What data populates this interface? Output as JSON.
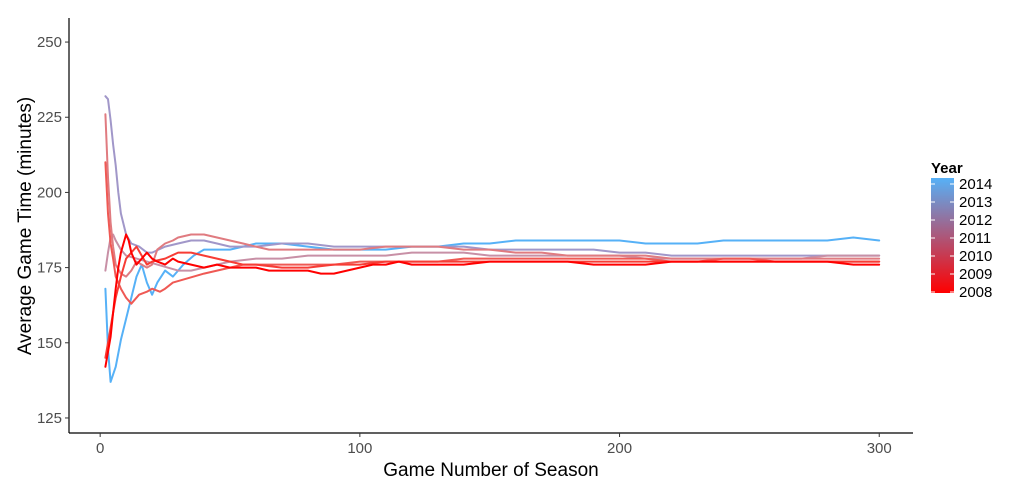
{
  "chart_data": {
    "type": "line",
    "title": "",
    "xlabel": "Game Number of Season",
    "ylabel": "Average Game Time (minutes)",
    "xlim": [
      -12,
      313
    ],
    "ylim": [
      120,
      258
    ],
    "xticks": [
      0,
      100,
      200,
      300
    ],
    "yticks": [
      125,
      150,
      175,
      200,
      225,
      250
    ],
    "grid": false,
    "legend": {
      "title": "Year",
      "position": "right",
      "type": "colorbar",
      "labels": [
        "2014",
        "2013",
        "2012",
        "2011",
        "2010",
        "2009",
        "2008"
      ],
      "low_color": "#ff0000",
      "high_color": "#56b1f7"
    },
    "series": [
      {
        "name": "2014",
        "color": "#56b1f7",
        "points": [
          [
            2,
            168
          ],
          [
            3,
            148
          ],
          [
            4,
            137
          ],
          [
            6,
            142
          ],
          [
            8,
            151
          ],
          [
            10,
            158
          ],
          [
            12,
            165
          ],
          [
            14,
            172
          ],
          [
            16,
            176
          ],
          [
            18,
            170
          ],
          [
            20,
            166
          ],
          [
            22,
            170
          ],
          [
            25,
            174
          ],
          [
            28,
            172
          ],
          [
            32,
            176
          ],
          [
            36,
            179
          ],
          [
            40,
            181
          ],
          [
            45,
            181
          ],
          [
            50,
            181
          ],
          [
            55,
            182
          ],
          [
            60,
            183
          ],
          [
            70,
            183
          ],
          [
            80,
            182
          ],
          [
            90,
            181
          ],
          [
            100,
            181
          ],
          [
            110,
            181
          ],
          [
            120,
            182
          ],
          [
            130,
            182
          ],
          [
            140,
            183
          ],
          [
            150,
            183
          ],
          [
            160,
            184
          ],
          [
            170,
            184
          ],
          [
            180,
            184
          ],
          [
            190,
            184
          ],
          [
            200,
            184
          ],
          [
            210,
            183
          ],
          [
            220,
            183
          ],
          [
            230,
            183
          ],
          [
            240,
            184
          ],
          [
            250,
            184
          ],
          [
            260,
            184
          ],
          [
            270,
            184
          ],
          [
            280,
            184
          ],
          [
            290,
            185
          ],
          [
            300,
            184
          ]
        ]
      },
      {
        "name": "2013",
        "color": "#a197c9",
        "points": [
          [
            2,
            232
          ],
          [
            3,
            231
          ],
          [
            4,
            224
          ],
          [
            5,
            216
          ],
          [
            6,
            209
          ],
          [
            7,
            200
          ],
          [
            8,
            193
          ],
          [
            10,
            186
          ],
          [
            12,
            183
          ],
          [
            15,
            182
          ],
          [
            18,
            180
          ],
          [
            20,
            180
          ],
          [
            25,
            182
          ],
          [
            30,
            183
          ],
          [
            35,
            184
          ],
          [
            40,
            184
          ],
          [
            45,
            183
          ],
          [
            50,
            182
          ],
          [
            60,
            182
          ],
          [
            70,
            183
          ],
          [
            80,
            183
          ],
          [
            90,
            182
          ],
          [
            100,
            182
          ],
          [
            110,
            182
          ],
          [
            120,
            182
          ],
          [
            130,
            182
          ],
          [
            140,
            182
          ],
          [
            150,
            181
          ],
          [
            160,
            181
          ],
          [
            170,
            181
          ],
          [
            180,
            181
          ],
          [
            190,
            181
          ],
          [
            200,
            180
          ],
          [
            210,
            180
          ],
          [
            220,
            179
          ],
          [
            230,
            179
          ],
          [
            240,
            179
          ],
          [
            250,
            179
          ],
          [
            260,
            179
          ],
          [
            270,
            179
          ],
          [
            280,
            179
          ],
          [
            290,
            179
          ],
          [
            300,
            179
          ]
        ]
      },
      {
        "name": "2012",
        "color": "#c890a6",
        "points": [
          [
            2,
            174
          ],
          [
            3,
            180
          ],
          [
            4,
            185
          ],
          [
            5,
            186
          ],
          [
            6,
            184
          ],
          [
            8,
            181
          ],
          [
            10,
            179
          ],
          [
            14,
            178
          ],
          [
            18,
            177
          ],
          [
            22,
            176
          ],
          [
            26,
            175
          ],
          [
            30,
            174
          ],
          [
            35,
            174
          ],
          [
            40,
            175
          ],
          [
            45,
            176
          ],
          [
            50,
            177
          ],
          [
            60,
            178
          ],
          [
            70,
            178
          ],
          [
            80,
            179
          ],
          [
            90,
            179
          ],
          [
            100,
            179
          ],
          [
            110,
            179
          ],
          [
            120,
            180
          ],
          [
            130,
            180
          ],
          [
            140,
            180
          ],
          [
            150,
            179
          ],
          [
            160,
            179
          ],
          [
            170,
            179
          ],
          [
            180,
            179
          ],
          [
            190,
            179
          ],
          [
            200,
            179
          ],
          [
            210,
            178
          ],
          [
            220,
            178
          ],
          [
            230,
            178
          ],
          [
            240,
            178
          ],
          [
            250,
            178
          ],
          [
            260,
            178
          ],
          [
            270,
            178
          ],
          [
            280,
            179
          ],
          [
            290,
            179
          ],
          [
            300,
            179
          ]
        ]
      },
      {
        "name": "2011",
        "color": "#e07b80",
        "points": [
          [
            2,
            226
          ],
          [
            3,
            205
          ],
          [
            4,
            190
          ],
          [
            5,
            182
          ],
          [
            6,
            176
          ],
          [
            8,
            173
          ],
          [
            10,
            172
          ],
          [
            12,
            174
          ],
          [
            14,
            177
          ],
          [
            16,
            176
          ],
          [
            18,
            175
          ],
          [
            20,
            176
          ],
          [
            22,
            181
          ],
          [
            25,
            183
          ],
          [
            28,
            184
          ],
          [
            30,
            185
          ],
          [
            35,
            186
          ],
          [
            40,
            186
          ],
          [
            45,
            185
          ],
          [
            50,
            184
          ],
          [
            55,
            183
          ],
          [
            60,
            182
          ],
          [
            65,
            181
          ],
          [
            70,
            181
          ],
          [
            75,
            181
          ],
          [
            80,
            181
          ],
          [
            90,
            181
          ],
          [
            100,
            181
          ],
          [
            110,
            182
          ],
          [
            120,
            182
          ],
          [
            130,
            182
          ],
          [
            140,
            181
          ],
          [
            150,
            181
          ],
          [
            160,
            180
          ],
          [
            170,
            180
          ],
          [
            180,
            179
          ],
          [
            190,
            179
          ],
          [
            200,
            179
          ],
          [
            210,
            179
          ],
          [
            220,
            178
          ],
          [
            230,
            178
          ],
          [
            240,
            178
          ],
          [
            250,
            178
          ],
          [
            260,
            178
          ],
          [
            270,
            178
          ],
          [
            280,
            178
          ],
          [
            290,
            178
          ],
          [
            300,
            178
          ]
        ]
      },
      {
        "name": "2010",
        "color": "#ef5954",
        "points": [
          [
            2,
            210
          ],
          [
            3,
            193
          ],
          [
            4,
            183
          ],
          [
            5,
            178
          ],
          [
            6,
            172
          ],
          [
            8,
            168
          ],
          [
            10,
            165
          ],
          [
            12,
            163
          ],
          [
            15,
            166
          ],
          [
            18,
            167
          ],
          [
            20,
            168
          ],
          [
            23,
            167
          ],
          [
            25,
            168
          ],
          [
            28,
            170
          ],
          [
            32,
            171
          ],
          [
            36,
            172
          ],
          [
            40,
            173
          ],
          [
            45,
            174
          ],
          [
            50,
            175
          ],
          [
            55,
            176
          ],
          [
            60,
            176
          ],
          [
            70,
            176
          ],
          [
            80,
            176
          ],
          [
            90,
            176
          ],
          [
            100,
            177
          ],
          [
            110,
            177
          ],
          [
            120,
            177
          ],
          [
            130,
            177
          ],
          [
            140,
            178
          ],
          [
            150,
            178
          ],
          [
            160,
            178
          ],
          [
            170,
            178
          ],
          [
            180,
            178
          ],
          [
            190,
            178
          ],
          [
            200,
            178
          ],
          [
            210,
            178
          ],
          [
            220,
            177
          ],
          [
            230,
            177
          ],
          [
            240,
            178
          ],
          [
            250,
            178
          ],
          [
            260,
            177
          ],
          [
            270,
            177
          ],
          [
            280,
            177
          ],
          [
            290,
            177
          ],
          [
            300,
            177
          ]
        ]
      },
      {
        "name": "2009",
        "color": "#f73c35",
        "points": [
          [
            2,
            145
          ],
          [
            3,
            150
          ],
          [
            4,
            155
          ],
          [
            5,
            160
          ],
          [
            6,
            165
          ],
          [
            8,
            172
          ],
          [
            10,
            178
          ],
          [
            12,
            180
          ],
          [
            14,
            182
          ],
          [
            16,
            179
          ],
          [
            18,
            176
          ],
          [
            20,
            177
          ],
          [
            25,
            178
          ],
          [
            30,
            180
          ],
          [
            35,
            180
          ],
          [
            40,
            179
          ],
          [
            45,
            178
          ],
          [
            50,
            177
          ],
          [
            55,
            176
          ],
          [
            60,
            176
          ],
          [
            70,
            175
          ],
          [
            80,
            175
          ],
          [
            90,
            176
          ],
          [
            100,
            176
          ],
          [
            110,
            177
          ],
          [
            120,
            177
          ],
          [
            130,
            177
          ],
          [
            140,
            177
          ],
          [
            150,
            177
          ],
          [
            160,
            177
          ],
          [
            170,
            177
          ],
          [
            180,
            177
          ],
          [
            190,
            177
          ],
          [
            200,
            177
          ],
          [
            210,
            177
          ],
          [
            220,
            177
          ],
          [
            230,
            177
          ],
          [
            240,
            177
          ],
          [
            250,
            177
          ],
          [
            260,
            177
          ],
          [
            270,
            177
          ],
          [
            280,
            177
          ],
          [
            290,
            177
          ],
          [
            300,
            177
          ]
        ]
      },
      {
        "name": "2008",
        "color": "#ff0000",
        "points": [
          [
            2,
            142
          ],
          [
            3,
            147
          ],
          [
            4,
            152
          ],
          [
            5,
            160
          ],
          [
            6,
            168
          ],
          [
            7,
            175
          ],
          [
            8,
            180
          ],
          [
            9,
            183
          ],
          [
            10,
            186
          ],
          [
            11,
            184
          ],
          [
            12,
            180
          ],
          [
            14,
            176
          ],
          [
            16,
            178
          ],
          [
            18,
            180
          ],
          [
            20,
            178
          ],
          [
            22,
            177
          ],
          [
            25,
            176
          ],
          [
            28,
            178
          ],
          [
            30,
            177
          ],
          [
            35,
            176
          ],
          [
            40,
            175
          ],
          [
            45,
            176
          ],
          [
            50,
            175
          ],
          [
            55,
            175
          ],
          [
            60,
            175
          ],
          [
            65,
            174
          ],
          [
            70,
            174
          ],
          [
            75,
            174
          ],
          [
            80,
            174
          ],
          [
            85,
            173
          ],
          [
            90,
            173
          ],
          [
            95,
            174
          ],
          [
            100,
            175
          ],
          [
            105,
            176
          ],
          [
            110,
            176
          ],
          [
            115,
            177
          ],
          [
            120,
            176
          ],
          [
            130,
            176
          ],
          [
            140,
            176
          ],
          [
            150,
            177
          ],
          [
            160,
            177
          ],
          [
            170,
            177
          ],
          [
            180,
            177
          ],
          [
            190,
            176
          ],
          [
            200,
            176
          ],
          [
            210,
            176
          ],
          [
            220,
            177
          ],
          [
            230,
            177
          ],
          [
            240,
            177
          ],
          [
            250,
            177
          ],
          [
            260,
            177
          ],
          [
            270,
            177
          ],
          [
            280,
            177
          ],
          [
            290,
            176
          ],
          [
            300,
            176
          ]
        ]
      }
    ]
  }
}
